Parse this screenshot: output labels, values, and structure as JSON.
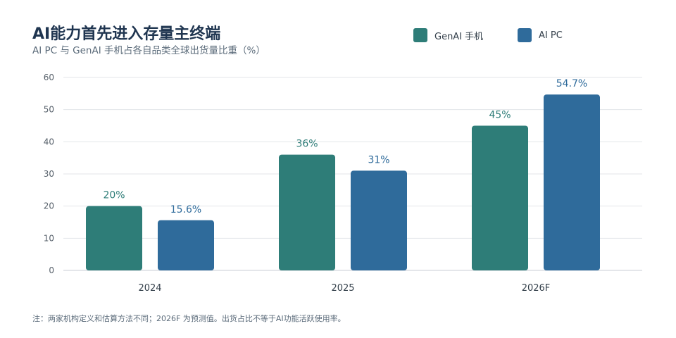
{
  "title": "AI能力首先进入存量主终端",
  "subtitle": "AI PC 与 GenAI 手机占各自品类全球出货量比重（%）",
  "note": "注：两家机构定义和估算方法不同；2026F 为预测值。出货占比不等于AI功能活跃使用率。",
  "legend": {
    "series0": "GenAI 手机",
    "series1": "AI PC"
  },
  "colors": {
    "genai": "#2e7d78",
    "aipc": "#2f6b9b",
    "grid": "#e3e6ea",
    "axis": "#c9ced4",
    "tick": "#555f69"
  },
  "chart_data": {
    "type": "bar",
    "categories": [
      "2024",
      "2025",
      "2026F"
    ],
    "series": [
      {
        "name": "GenAI 手机",
        "values": [
          20,
          36,
          45
        ],
        "labels": [
          "20%",
          "36%",
          "45%"
        ],
        "color": "#2e7d78"
      },
      {
        "name": "AI PC",
        "values": [
          15.6,
          31,
          54.7
        ],
        "labels": [
          "15.6%",
          "31%",
          "54.7%"
        ],
        "color": "#2f6b9b"
      }
    ],
    "ylim": [
      0,
      60
    ],
    "yticks": [
      0,
      10,
      20,
      30,
      40,
      50,
      60
    ],
    "grid": true,
    "legend_position": "top-right"
  }
}
